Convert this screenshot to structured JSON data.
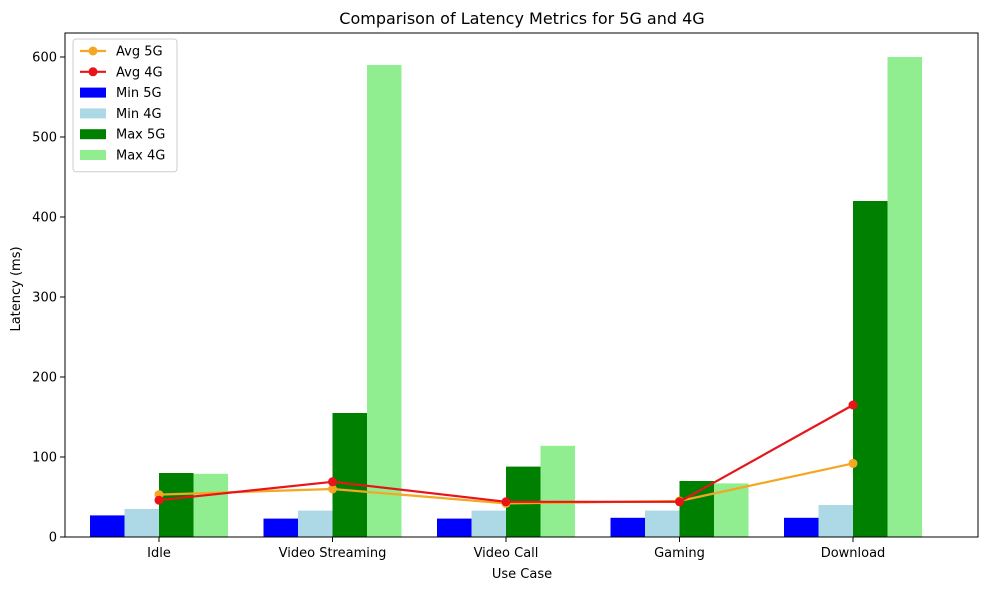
{
  "chart_data": {
    "type": "bar",
    "title": "Comparison of Latency Metrics for 5G and 4G",
    "xlabel": "Use Case",
    "ylabel": "Latency (ms)",
    "categories": [
      "Idle",
      "Video Streaming",
      "Video Call",
      "Gaming",
      "Download"
    ],
    "ylim": [
      0,
      630
    ],
    "yticks": [
      0,
      100,
      200,
      300,
      400,
      500,
      600
    ],
    "grid": false,
    "legend_position": "top-left",
    "bar_series": [
      {
        "name": "Min 5G",
        "color": "#0000ff",
        "values": [
          27,
          23,
          23,
          24,
          24
        ]
      },
      {
        "name": "Min 4G",
        "color": "#add8e6",
        "values": [
          35,
          33,
          33,
          33,
          40
        ]
      },
      {
        "name": "Max 5G",
        "color": "#008000",
        "values": [
          80,
          155,
          88,
          70,
          420
        ]
      },
      {
        "name": "Max 4G",
        "color": "#90ee90",
        "values": [
          79,
          590,
          114,
          67,
          600
        ]
      }
    ],
    "line_series": [
      {
        "name": "Avg 5G",
        "color": "#f5a623",
        "values": [
          53,
          60,
          42,
          45,
          92
        ]
      },
      {
        "name": "Avg 4G",
        "color": "#e8141a",
        "values": [
          46,
          69,
          44,
          44,
          165
        ]
      }
    ]
  }
}
